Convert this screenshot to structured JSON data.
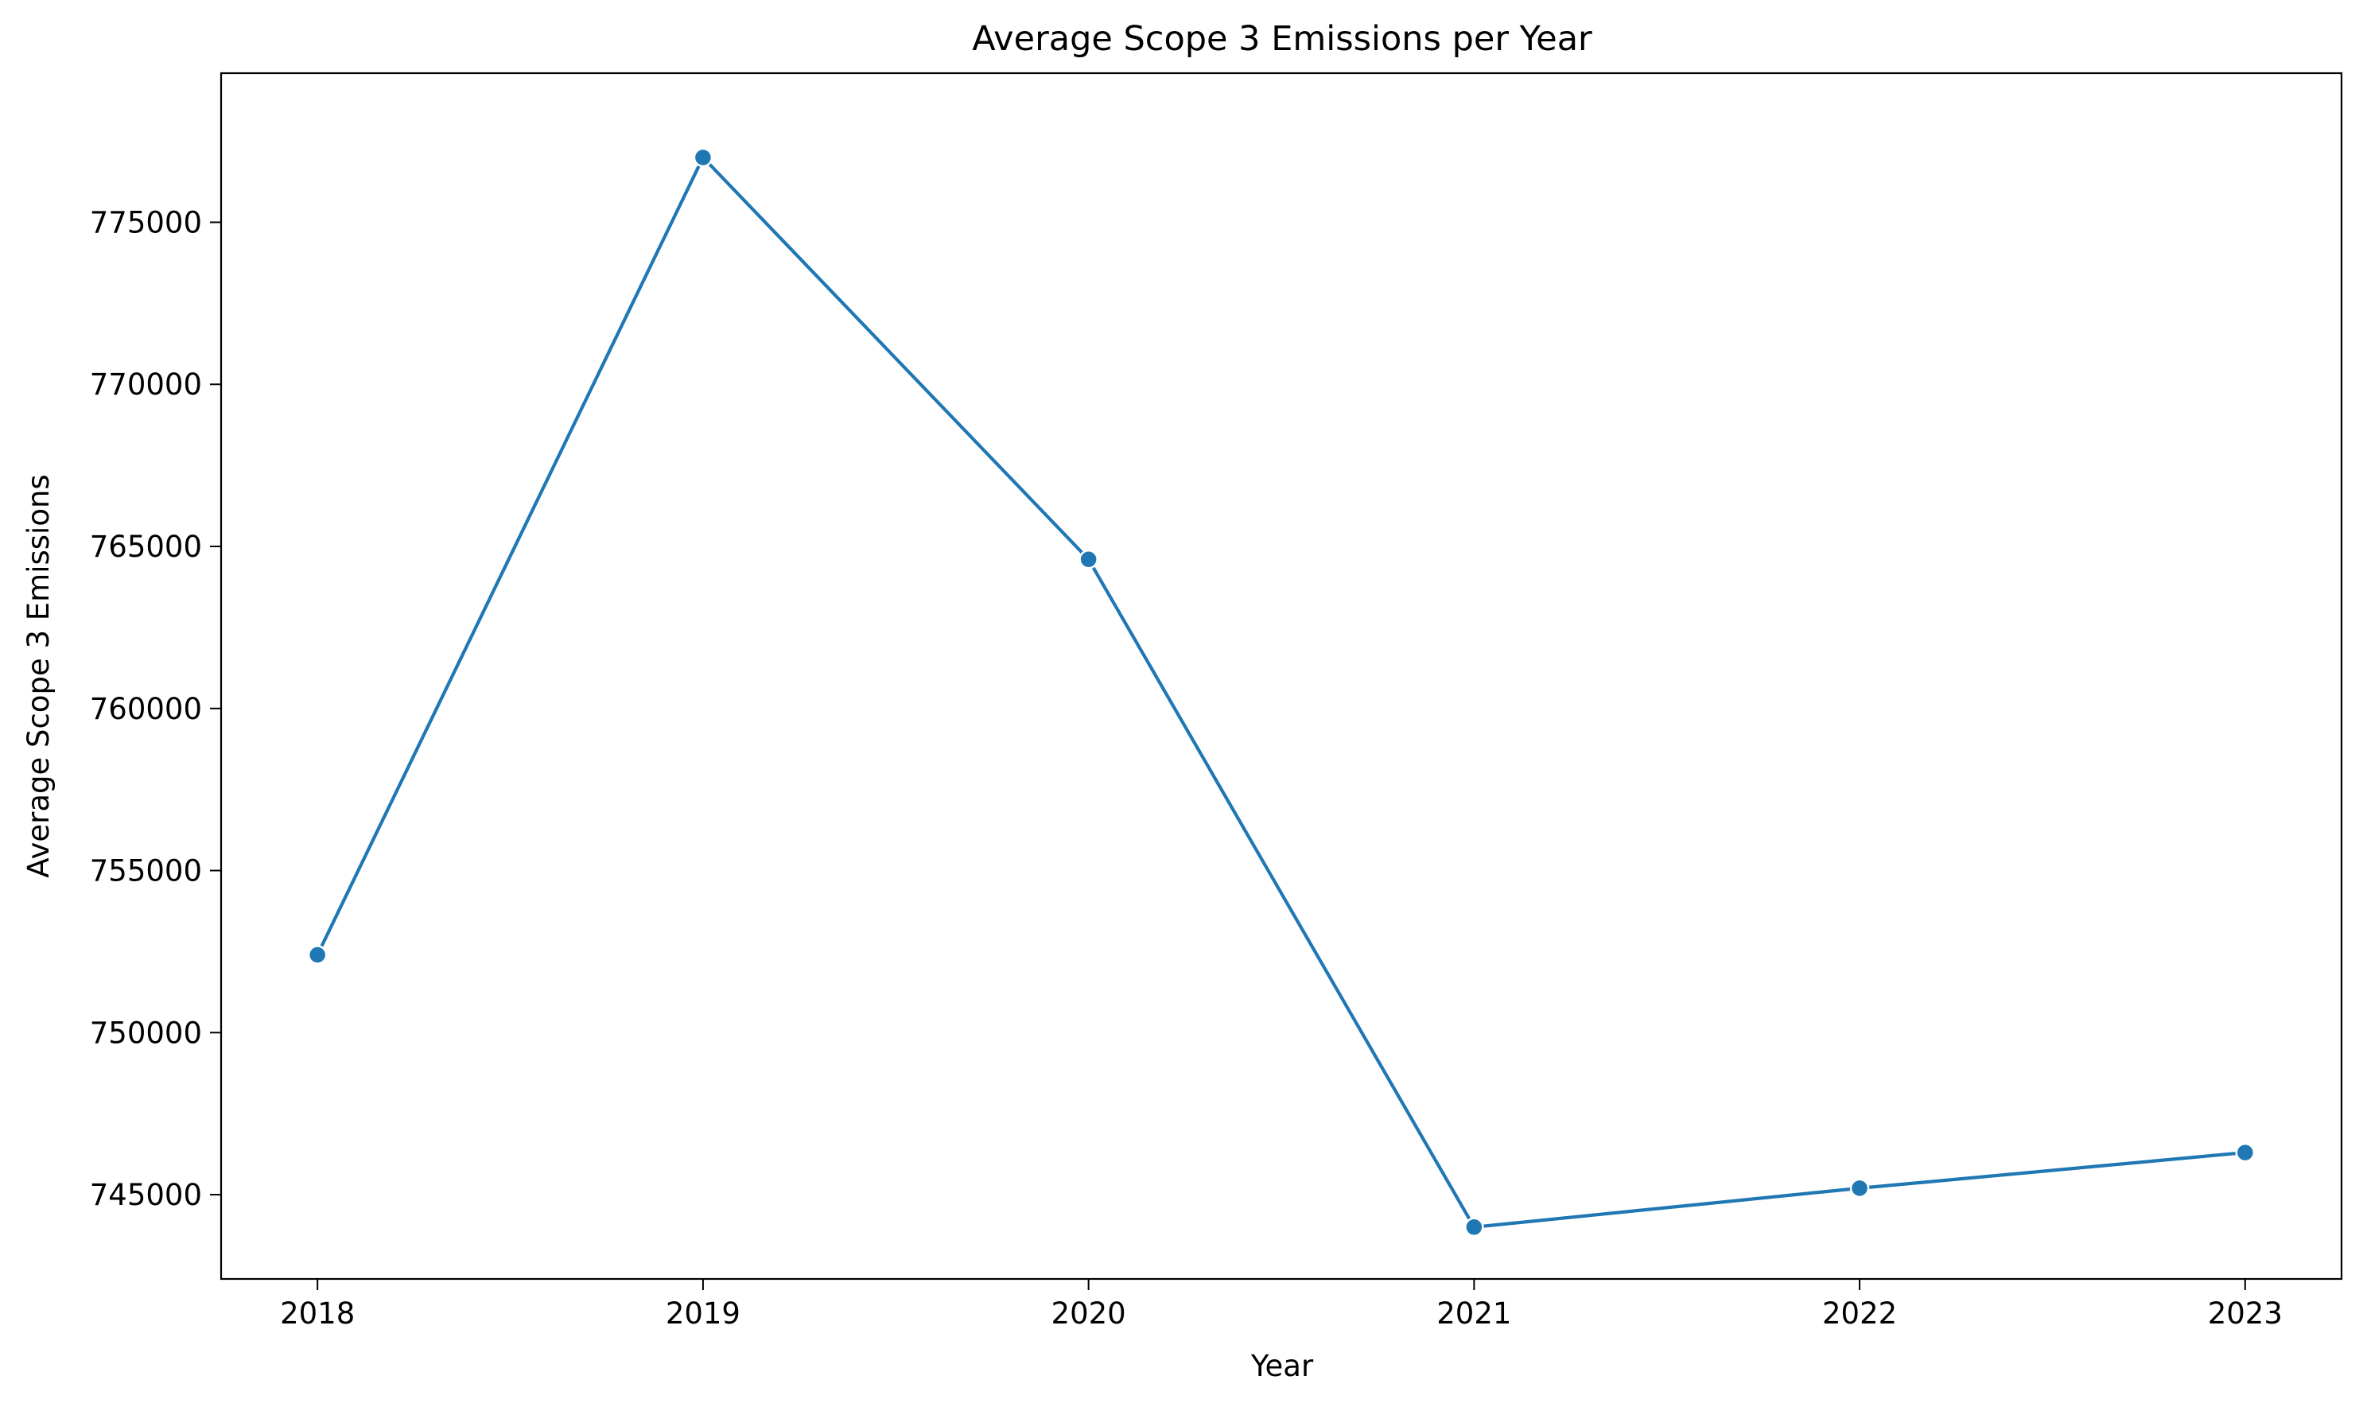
{
  "chart_data": {
    "type": "line",
    "title": "Average Scope 3 Emissions per Year",
    "xlabel": "Year",
    "ylabel": "Average Scope 3 Emissions",
    "x": [
      2018,
      2019,
      2020,
      2021,
      2022,
      2023
    ],
    "x_ticks": [
      "2018",
      "2019",
      "2020",
      "2021",
      "2022",
      "2023"
    ],
    "y_ticks": [
      745000,
      750000,
      755000,
      760000,
      765000,
      770000,
      775000
    ],
    "y_tick_labels": [
      "745000",
      "750000",
      "755000",
      "760000",
      "765000",
      "770000",
      "775000"
    ],
    "xlim": [
      2017.75,
      2023.25
    ],
    "ylim": [
      742400,
      779600
    ],
    "grid": false,
    "legend": "none",
    "series": [
      {
        "values": [
          752400,
          777000,
          764600,
          744000,
          745200,
          746300
        ],
        "color": "#1f77b4",
        "marker": "circle"
      }
    ]
  }
}
